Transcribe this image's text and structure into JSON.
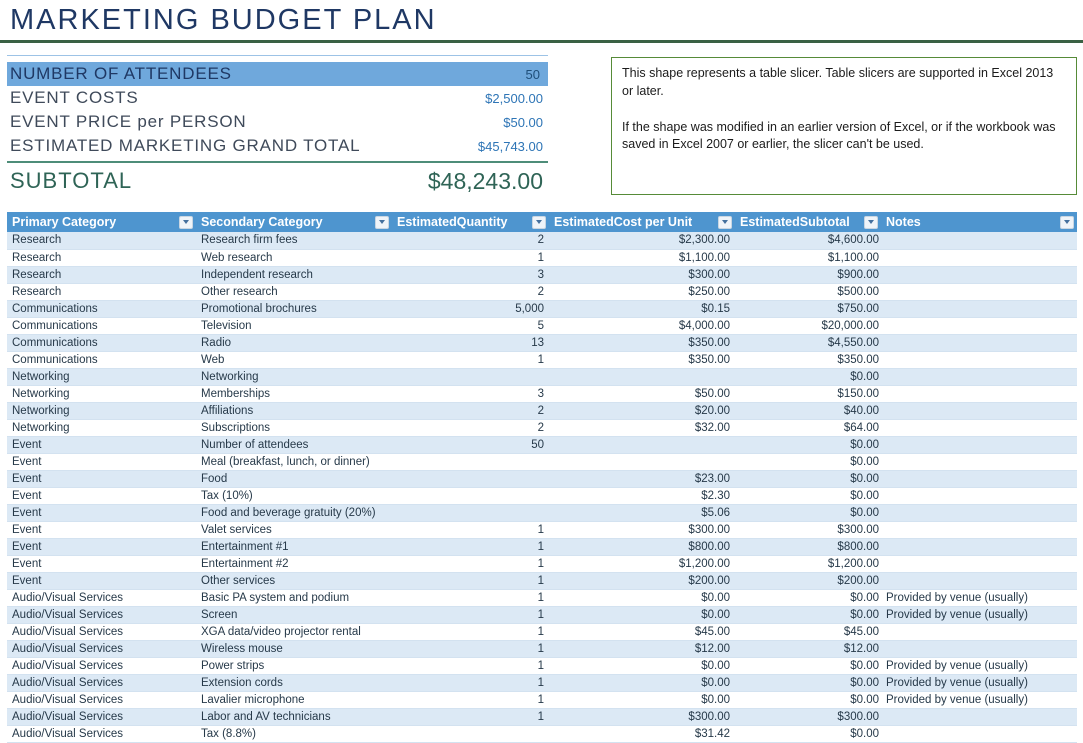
{
  "title": "MARKETING BUDGET PLAN",
  "summary": {
    "rows": [
      {
        "label": "NUMBER OF ATTENDEES",
        "value": "50"
      },
      {
        "label": "EVENT COSTS",
        "value": "$2,500.00"
      },
      {
        "label": "EVENT PRICE per PERSON",
        "value": "$50.00"
      },
      {
        "label": "ESTIMATED MARKETING GRAND TOTAL",
        "value": "$45,743.00"
      }
    ],
    "subtotal": {
      "label": "SUBTOTAL",
      "value": "$48,243.00"
    }
  },
  "slicer_note": {
    "paragraph1": "This shape represents a table slicer. Table slicers are supported in Excel 2013 or later.",
    "paragraph2": "If the shape was modified in an earlier version of Excel, or if the workbook was saved in Excel 2007 or earlier, the slicer can't be used."
  },
  "table": {
    "columns": [
      "Primary Category",
      "Secondary Category",
      "EstimatedQuantity",
      "EstimatedCost per Unit",
      "EstimatedSubtotal",
      "Notes"
    ],
    "rows": [
      [
        "Research",
        "Research firm fees",
        "2",
        "$2,300.00",
        "$4,600.00",
        ""
      ],
      [
        "Research",
        "Web research",
        "1",
        "$1,100.00",
        "$1,100.00",
        ""
      ],
      [
        "Research",
        "Independent research",
        "3",
        "$300.00",
        "$900.00",
        ""
      ],
      [
        "Research",
        "Other research",
        "2",
        "$250.00",
        "$500.00",
        ""
      ],
      [
        "Communications",
        "Promotional brochures",
        "5,000",
        "$0.15",
        "$750.00",
        ""
      ],
      [
        "Communications",
        "Television",
        "5",
        "$4,000.00",
        "$20,000.00",
        ""
      ],
      [
        "Communications",
        "Radio",
        "13",
        "$350.00",
        "$4,550.00",
        ""
      ],
      [
        "Communications",
        "Web",
        "1",
        "$350.00",
        "$350.00",
        ""
      ],
      [
        "Networking",
        "Networking",
        "",
        "",
        "$0.00",
        ""
      ],
      [
        "Networking",
        "Memberships",
        "3",
        "$50.00",
        "$150.00",
        ""
      ],
      [
        "Networking",
        "Affiliations",
        "2",
        "$20.00",
        "$40.00",
        ""
      ],
      [
        "Networking",
        "Subscriptions",
        "2",
        "$32.00",
        "$64.00",
        ""
      ],
      [
        "Event",
        "Number of attendees",
        "50",
        "",
        "$0.00",
        ""
      ],
      [
        "Event",
        "Meal (breakfast, lunch, or dinner)",
        "",
        "",
        "$0.00",
        ""
      ],
      [
        "Event",
        "Food",
        "",
        "$23.00",
        "$0.00",
        ""
      ],
      [
        "Event",
        "Tax (10%)",
        "",
        "$2.30",
        "$0.00",
        ""
      ],
      [
        "Event",
        "Food and beverage gratuity (20%)",
        "",
        "$5.06",
        "$0.00",
        ""
      ],
      [
        "Event",
        "Valet services",
        "1",
        "$300.00",
        "$300.00",
        ""
      ],
      [
        "Event",
        "Entertainment #1",
        "1",
        "$800.00",
        "$800.00",
        ""
      ],
      [
        "Event",
        "Entertainment #2",
        "1",
        "$1,200.00",
        "$1,200.00",
        ""
      ],
      [
        "Event",
        "Other services",
        "1",
        "$200.00",
        "$200.00",
        ""
      ],
      [
        "Audio/Visual Services",
        "Basic PA system and podium",
        "1",
        "$0.00",
        "$0.00",
        "Provided by venue (usually)"
      ],
      [
        "Audio/Visual Services",
        "Screen",
        "1",
        "$0.00",
        "$0.00",
        "Provided by venue (usually)"
      ],
      [
        "Audio/Visual Services",
        "XGA data/video projector rental",
        "1",
        "$45.00",
        "$45.00",
        ""
      ],
      [
        "Audio/Visual Services",
        "Wireless mouse",
        "1",
        "$12.00",
        "$12.00",
        ""
      ],
      [
        "Audio/Visual Services",
        "Power strips",
        "1",
        "$0.00",
        "$0.00",
        "Provided by venue (usually)"
      ],
      [
        "Audio/Visual Services",
        "Extension cords",
        "1",
        "$0.00",
        "$0.00",
        "Provided by venue (usually)"
      ],
      [
        "Audio/Visual Services",
        "Lavalier microphone",
        "1",
        "$0.00",
        "$0.00",
        "Provided by venue (usually)"
      ],
      [
        "Audio/Visual Services",
        "Labor and AV technicians",
        "1",
        "$300.00",
        "$300.00",
        ""
      ],
      [
        "Audio/Visual Services",
        "Tax (8.8%)",
        "",
        "$31.42",
        "$0.00",
        ""
      ]
    ]
  },
  "colors": {
    "title_navy": "#1F3864",
    "title_rule_green": "#3A6144",
    "highlight_blue": "#6FA8DC",
    "value_blue": "#2E75B6",
    "subtotal_green": "#2F6456",
    "note_border_green": "#568B38",
    "table_header_blue": "#4E95CF",
    "band_blue": "#DCE9F5"
  }
}
